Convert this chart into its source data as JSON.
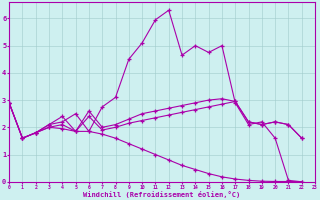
{
  "background_color": "#cef0f0",
  "grid_color": "#a0cccc",
  "line_color": "#aa00aa",
  "xlim": [
    0,
    23
  ],
  "ylim": [
    0,
    6.6
  ],
  "xlabel": "Windchill (Refroidissement éolien,°C)",
  "xticks": [
    0,
    1,
    2,
    3,
    4,
    5,
    6,
    7,
    8,
    9,
    10,
    11,
    12,
    13,
    14,
    15,
    16,
    17,
    18,
    19,
    20,
    21,
    22,
    23
  ],
  "yticks": [
    0,
    1,
    2,
    3,
    4,
    5,
    6
  ],
  "curve1": {
    "x": [
      0,
      1,
      2,
      3,
      4,
      5,
      6,
      7,
      8,
      9,
      10,
      11,
      12,
      13,
      14,
      15,
      16,
      17,
      18,
      19,
      20,
      21,
      22
    ],
    "y": [
      2.9,
      1.6,
      1.8,
      2.1,
      2.2,
      2.5,
      1.85,
      2.75,
      3.1,
      4.5,
      5.1,
      5.95,
      6.3,
      4.65,
      5.0,
      4.75,
      5.0,
      2.9,
      2.1,
      2.2,
      1.6,
      0.05,
      0.0
    ]
  },
  "curve2": {
    "x": [
      0,
      1,
      2,
      3,
      4,
      5,
      6,
      7,
      8,
      9,
      10,
      11,
      12,
      13,
      14,
      15,
      16,
      17,
      18,
      19,
      20,
      21,
      22
    ],
    "y": [
      2.9,
      1.6,
      1.8,
      2.0,
      2.1,
      1.85,
      2.6,
      2.0,
      2.1,
      2.3,
      2.5,
      2.6,
      2.7,
      2.8,
      2.9,
      3.0,
      3.05,
      2.95,
      2.2,
      2.1,
      2.2,
      2.1,
      1.6
    ]
  },
  "curve3": {
    "x": [
      0,
      1,
      2,
      3,
      4,
      5,
      6,
      7,
      8,
      9,
      10,
      11,
      12,
      13,
      14,
      15,
      16,
      17,
      18,
      19,
      20,
      21,
      22
    ],
    "y": [
      2.9,
      1.6,
      1.8,
      2.1,
      2.4,
      1.85,
      2.4,
      1.9,
      2.0,
      2.15,
      2.25,
      2.35,
      2.45,
      2.55,
      2.65,
      2.75,
      2.85,
      2.95,
      2.2,
      2.1,
      2.2,
      2.1,
      1.6
    ]
  },
  "curve4": {
    "x": [
      0,
      1,
      2,
      3,
      4,
      5,
      6,
      7,
      8,
      9,
      10,
      11,
      12,
      13,
      14,
      15,
      16,
      17,
      18,
      19,
      20,
      21,
      22
    ],
    "y": [
      2.9,
      1.6,
      1.8,
      2.0,
      1.95,
      1.85,
      1.85,
      1.75,
      1.6,
      1.4,
      1.2,
      1.0,
      0.8,
      0.6,
      0.45,
      0.3,
      0.18,
      0.1,
      0.05,
      0.02,
      0.01,
      0.01,
      0.0
    ]
  }
}
